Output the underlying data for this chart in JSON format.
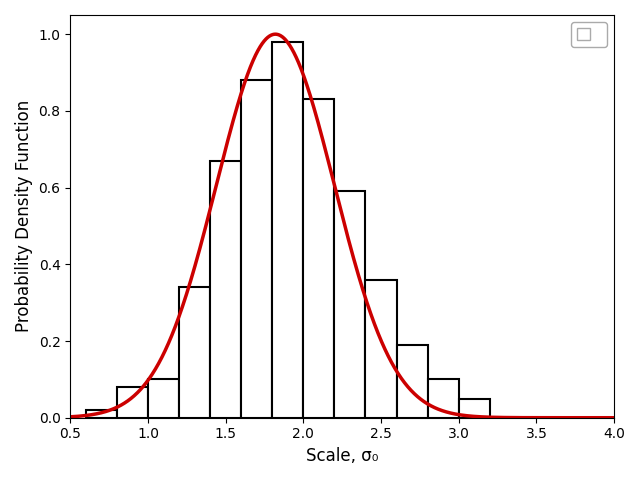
{
  "xlabel": "Scale, σ₀",
  "ylabel": "Probability Density Function",
  "xlim": [
    0.5,
    4.0
  ],
  "ylim": [
    0.0,
    1.05
  ],
  "xticks": [
    0.5,
    1.0,
    1.5,
    2.0,
    2.5,
    3.0,
    3.5,
    4.0
  ],
  "yticks": [
    0.0,
    0.2,
    0.4,
    0.6,
    0.8,
    1.0
  ],
  "bar_edges": [
    0.6,
    0.8,
    1.0,
    1.1,
    1.2,
    1.4,
    1.6,
    1.7,
    1.8,
    2.0,
    2.1,
    2.3,
    2.5,
    2.6,
    2.7,
    2.8,
    2.9,
    3.0,
    3.1
  ],
  "bar_heights": [
    0.02,
    0.08,
    0.08,
    0.1,
    0.34,
    0.67,
    0.88,
    0.98,
    0.98,
    0.83,
    0.59,
    0.36,
    0.2,
    0.1,
    0.1,
    0.05,
    0.02,
    0.01
  ],
  "curve_mu": 1.82,
  "curve_sigma": 0.38,
  "curve_color": "#cc0000",
  "curve_linewidth": 2.5,
  "bar_facecolor": "white",
  "bar_edgecolor": "black",
  "bar_linewidth": 1.5,
  "legend_marker_facecolor": "white",
  "legend_marker_edgecolor": "#aaaaaa",
  "figsize": [
    6.4,
    4.8
  ],
  "dpi": 100
}
